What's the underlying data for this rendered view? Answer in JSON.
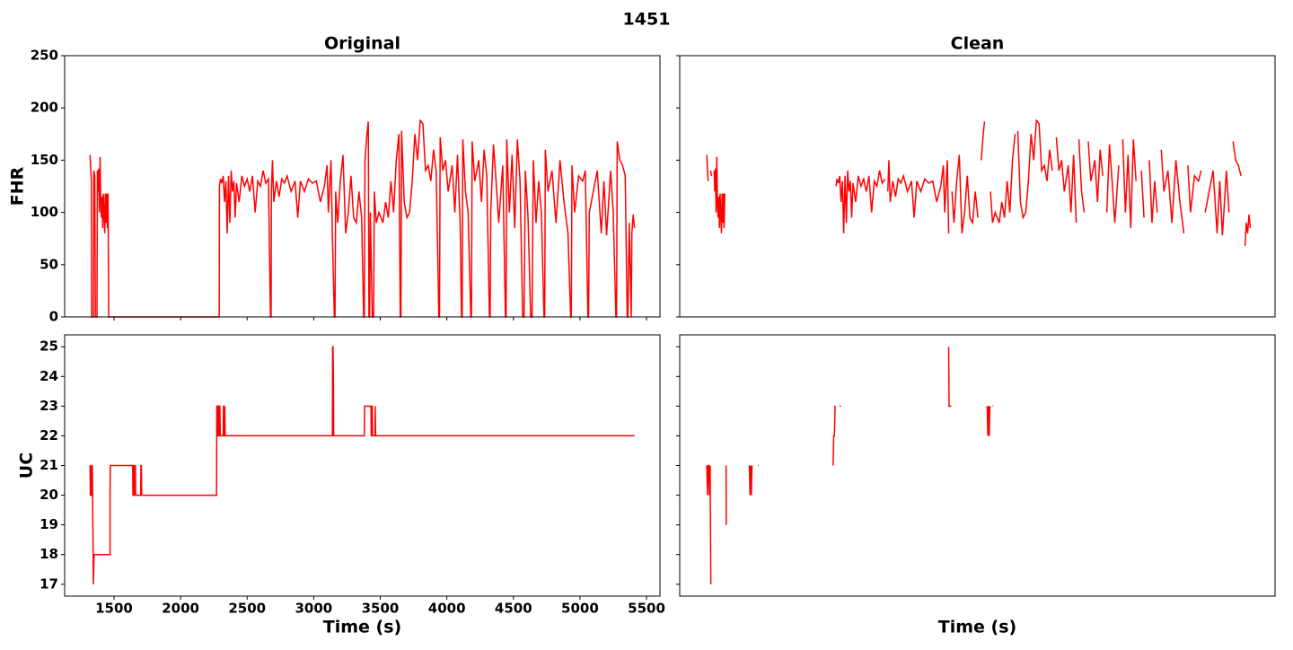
{
  "title": "1451",
  "chart_data": [
    {
      "type": "line",
      "title": "Original",
      "ylabel": "FHR",
      "color": "#ff0000",
      "xlim": [
        1129,
        5601
      ],
      "ylim": [
        0,
        250
      ],
      "yticks": [
        0,
        50,
        100,
        150,
        200,
        250
      ],
      "x": [
        1320,
        1325,
        1330,
        1332,
        1345,
        1348,
        1355,
        1360,
        1372,
        1375,
        1380,
        1385,
        1390,
        1395,
        1400,
        1405,
        1410,
        1415,
        1420,
        1425,
        1430,
        1435,
        1440,
        1445,
        1450,
        1455,
        1460,
        2290,
        2292,
        2300,
        2310,
        2320,
        2330,
        2340,
        2350,
        2360,
        2370,
        2380,
        2390,
        2400,
        2410,
        2420,
        2440,
        2460,
        2480,
        2500,
        2520,
        2540,
        2560,
        2580,
        2600,
        2620,
        2640,
        2660,
        2675,
        2680,
        2682,
        2690,
        2700,
        2720,
        2740,
        2760,
        2780,
        2800,
        2830,
        2860,
        2880,
        2900,
        2930,
        2960,
        2990,
        3020,
        3050,
        3080,
        3100,
        3110,
        3130,
        3140,
        3155,
        3160,
        3165,
        3180,
        3200,
        3220,
        3240,
        3260,
        3280,
        3300,
        3320,
        3340,
        3360,
        3375,
        3380,
        3385,
        3400,
        3410,
        3415,
        3420,
        3425,
        3440,
        3450,
        3455,
        3470,
        3490,
        3520,
        3540,
        3560,
        3580,
        3600,
        3620,
        3640,
        3650,
        3655,
        3660,
        3680,
        3700,
        3720,
        3740,
        3760,
        3780,
        3800,
        3820,
        3840,
        3860,
        3880,
        3900,
        3920,
        3940,
        3945,
        3950,
        3970,
        3990,
        4010,
        4040,
        4060,
        4080,
        4100,
        4110,
        4115,
        4120,
        4140,
        4160,
        4180,
        4185,
        4190,
        4210,
        4240,
        4260,
        4280,
        4300,
        4320,
        4325,
        4330,
        4350,
        4370,
        4390,
        4420,
        4440,
        4445,
        4450,
        4470,
        4490,
        4510,
        4530,
        4550,
        4570,
        4580,
        4590,
        4610,
        4630,
        4640,
        4650,
        4670,
        4690,
        4710,
        4730,
        4735,
        4740,
        4760,
        4790,
        4820,
        4850,
        4880,
        4910,
        4930,
        4935,
        4940,
        4960,
        4990,
        5020,
        5040,
        5060,
        5065,
        5070,
        5100,
        5130,
        5160,
        5180,
        5200,
        5230,
        5250,
        5270,
        5275,
        5280,
        5300,
        5320,
        5340,
        5355,
        5360,
        5370,
        5385,
        5390,
        5400,
        5410
      ],
      "values": [
        155,
        140,
        130,
        0,
        0,
        140,
        135,
        0,
        0,
        140,
        120,
        142,
        100,
        153,
        110,
        95,
        115,
        85,
        118,
        100,
        80,
        118,
        90,
        118,
        85,
        118,
        0,
        0,
        125,
        132,
        128,
        135,
        110,
        130,
        80,
        135,
        90,
        140,
        120,
        130,
        95,
        128,
        110,
        135,
        125,
        132,
        120,
        135,
        100,
        130,
        125,
        140,
        128,
        132,
        0,
        0,
        120,
        150,
        110,
        130,
        115,
        132,
        128,
        135,
        120,
        130,
        95,
        130,
        120,
        132,
        128,
        130,
        110,
        125,
        145,
        100,
        150,
        80,
        0,
        0,
        120,
        90,
        130,
        155,
        80,
        100,
        135,
        95,
        90,
        120,
        95,
        0,
        0,
        150,
        175,
        187,
        0,
        0,
        100,
        0,
        0,
        120,
        90,
        100,
        90,
        110,
        95,
        130,
        100,
        150,
        175,
        0,
        0,
        178,
        110,
        95,
        100,
        130,
        175,
        150,
        188,
        185,
        140,
        145,
        130,
        160,
        140,
        0,
        0,
        172,
        140,
        150,
        120,
        145,
        100,
        155,
        90,
        0,
        0,
        170,
        120,
        100,
        0,
        0,
        168,
        130,
        150,
        110,
        160,
        135,
        0,
        0,
        100,
        165,
        130,
        90,
        145,
        0,
        0,
        170,
        100,
        155,
        85,
        170,
        130,
        0,
        0,
        140,
        95,
        0,
        0,
        150,
        90,
        130,
        100,
        0,
        0,
        160,
        120,
        140,
        90,
        150,
        110,
        80,
        0,
        0,
        145,
        100,
        135,
        130,
        140,
        0,
        0,
        100,
        120,
        140,
        80,
        130,
        78,
        140,
        100,
        0,
        0,
        168,
        150,
        145,
        135,
        0,
        0,
        90,
        0,
        80,
        98,
        85
      ]
    },
    {
      "type": "line",
      "title": "Clean",
      "color": "#ff0000",
      "xlim": [
        1116,
        5596
      ],
      "ylim": [
        0,
        250
      ],
      "x": [
        1320,
        1325,
        1330,
        1345,
        1348,
        1355,
        1372,
        1375,
        1380,
        1385,
        1390,
        1395,
        1400,
        1405,
        1410,
        1415,
        1420,
        1425,
        1430,
        1435,
        1440,
        1445,
        1450,
        1455,
        2000,
        2292,
        2300,
        2310,
        2320,
        2330,
        2340,
        2350,
        2360,
        2370,
        2380,
        2390,
        2400,
        2410,
        2420,
        2440,
        2460,
        2480,
        2500,
        2520,
        2540,
        2560,
        2580,
        2600,
        2620,
        2640,
        2660,
        2680,
        2682,
        2690,
        2700,
        2720,
        2740,
        2760,
        2780,
        2800,
        2830,
        2860,
        2880,
        2900,
        2930,
        2960,
        2990,
        3020,
        3050,
        3080,
        3100,
        3110,
        3130,
        3140,
        3160,
        3165,
        3180,
        3200,
        3220,
        3240,
        3260,
        3280,
        3300,
        3320,
        3340,
        3360,
        3380,
        3385,
        3400,
        3410,
        3420,
        3425,
        3450,
        3455,
        3470,
        3490,
        3520,
        3540,
        3560,
        3580,
        3600,
        3620,
        3640,
        3655,
        3660,
        3680,
        3700,
        3720,
        3740,
        3760,
        3780,
        3800,
        3820,
        3840,
        3860,
        3880,
        3900,
        3920,
        3945,
        3950,
        3970,
        3990,
        4010,
        4040,
        4060,
        4080,
        4100,
        4115,
        4120,
        4140,
        4160,
        4185,
        4190,
        4210,
        4240,
        4260,
        4280,
        4300,
        4325,
        4330,
        4350,
        4370,
        4390,
        4420,
        4445,
        4450,
        4470,
        4490,
        4510,
        4530,
        4550,
        4580,
        4590,
        4610,
        4640,
        4650,
        4670,
        4690,
        4710,
        4735,
        4740,
        4760,
        4790,
        4820,
        4850,
        4880,
        4910,
        4935,
        4940,
        4960,
        4990,
        5020,
        5040,
        5065,
        5070,
        5100,
        5130,
        5160,
        5180,
        5200,
        5230,
        5250,
        5275,
        5280,
        5300,
        5320,
        5340,
        5360,
        5370,
        5380,
        5390,
        5400,
        5410
      ],
      "values": [
        155,
        140,
        130,
        null,
        140,
        135,
        null,
        140,
        120,
        142,
        100,
        153,
        110,
        95,
        115,
        85,
        118,
        100,
        80,
        118,
        90,
        118,
        85,
        118,
        null,
        125,
        132,
        128,
        135,
        110,
        130,
        80,
        135,
        90,
        140,
        120,
        130,
        95,
        128,
        110,
        135,
        125,
        132,
        120,
        135,
        100,
        130,
        125,
        140,
        128,
        132,
        null,
        120,
        150,
        110,
        130,
        115,
        132,
        128,
        135,
        120,
        130,
        95,
        130,
        120,
        132,
        128,
        130,
        110,
        125,
        145,
        100,
        150,
        80,
        null,
        120,
        90,
        130,
        155,
        80,
        100,
        135,
        95,
        90,
        120,
        95,
        null,
        150,
        175,
        187,
        null,
        100,
        null,
        120,
        90,
        100,
        90,
        110,
        95,
        130,
        100,
        150,
        175,
        null,
        178,
        110,
        95,
        100,
        130,
        175,
        150,
        188,
        185,
        140,
        145,
        130,
        160,
        140,
        null,
        172,
        140,
        150,
        120,
        145,
        100,
        155,
        90,
        null,
        170,
        120,
        100,
        null,
        168,
        130,
        150,
        110,
        160,
        135,
        null,
        100,
        165,
        130,
        90,
        145,
        null,
        170,
        100,
        155,
        85,
        170,
        130,
        null,
        140,
        95,
        null,
        150,
        90,
        130,
        100,
        null,
        160,
        120,
        140,
        90,
        150,
        110,
        80,
        null,
        145,
        100,
        135,
        130,
        140,
        null,
        100,
        120,
        140,
        80,
        130,
        78,
        140,
        100,
        null,
        168,
        150,
        145,
        135,
        null,
        68,
        90,
        80,
        98,
        85
      ]
    },
    {
      "type": "line",
      "ylabel": "UC",
      "xlabel": "Time (s)",
      "color": "#ff0000",
      "xlim": [
        1129,
        5601
      ],
      "ylim": [
        16.6,
        25.4
      ],
      "yticks": [
        17,
        18,
        19,
        20,
        21,
        22,
        23,
        24,
        25
      ],
      "xticks": [
        1500,
        2000,
        2500,
        3000,
        3500,
        4000,
        4500,
        5000,
        5500
      ],
      "x": [
        1320,
        1322,
        1325,
        1327,
        1330,
        1332,
        1335,
        1337,
        1345,
        1350,
        1350,
        1470,
        1470,
        1472,
        1475,
        1640,
        1642,
        1645,
        1647,
        1650,
        1652,
        1655,
        1657,
        1660,
        1662,
        1665,
        1700,
        1702,
        1705,
        1708,
        1710,
        2270,
        2272,
        2275,
        2278,
        2280,
        2283,
        2285,
        2288,
        2290,
        2293,
        2295,
        2298,
        2300,
        2320,
        2322,
        2325,
        2328,
        2330,
        2332,
        2335,
        3140,
        3142,
        3145,
        3148,
        3150,
        3152,
        3155,
        3380,
        3382,
        3430,
        3432,
        3435,
        3438,
        3440,
        3442,
        3445,
        3460,
        3462,
        3465,
        5410
      ],
      "values": [
        21,
        20,
        20,
        21,
        21,
        20,
        20,
        21,
        17,
        18,
        18,
        18,
        20,
        21,
        21,
        21,
        20,
        20,
        21,
        21,
        20,
        20,
        21,
        21,
        20,
        20,
        20,
        21,
        21,
        20,
        20,
        20,
        23,
        23,
        22,
        22,
        23,
        23,
        22,
        22,
        23,
        23,
        22,
        22,
        22,
        23,
        23,
        22,
        22,
        23,
        22,
        22,
        25,
        25,
        24,
        22,
        22,
        22,
        22,
        23,
        23,
        22,
        22,
        23,
        23,
        22,
        22,
        22,
        23,
        22,
        22
      ]
    },
    {
      "type": "line",
      "xlabel": "Time (s)",
      "color": "#ff0000",
      "xlim": [
        1116,
        5596
      ],
      "ylim": [
        16.6,
        25.4
      ],
      "x": [
        1320,
        1325,
        1330,
        1335,
        1340,
        1345,
        1350,
        1400,
        1465,
        1466,
        1500,
        1640,
        1645,
        1650,
        1655,
        1660,
        1680,
        1705,
        1710,
        1800,
        2270,
        2275,
        2280,
        2285,
        2290,
        2300,
        2320,
        2330,
        2400,
        3140,
        3143,
        3160,
        3200,
        3430,
        3435,
        3440,
        3445,
        3450,
        3460,
        3470,
        3475
      ],
      "values": [
        21,
        20,
        21,
        21,
        20,
        21,
        17,
        null,
        21,
        19,
        null,
        21,
        20,
        21,
        20,
        21,
        null,
        21,
        21,
        null,
        21,
        22,
        22,
        23,
        23,
        null,
        23,
        23,
        null,
        25,
        23,
        23,
        null,
        23,
        22,
        23,
        22,
        23,
        null,
        23,
        23
      ]
    }
  ]
}
